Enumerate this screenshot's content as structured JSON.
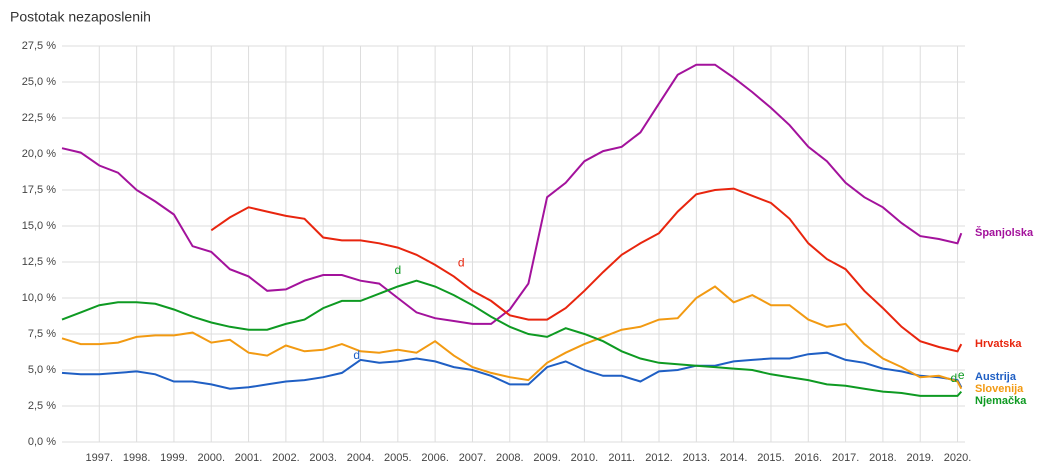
{
  "chart_data": {
    "type": "line",
    "title": "Postotak nezaposlenih",
    "x": [
      1996,
      1996.5,
      1997,
      1997.5,
      1998,
      1998.5,
      1999,
      1999.5,
      2000,
      2000.5,
      2001,
      2001.5,
      2002,
      2002.5,
      2003,
      2003.5,
      2004,
      2004.5,
      2005,
      2005.5,
      2006,
      2006.5,
      2007,
      2007.5,
      2008,
      2008.5,
      2009,
      2009.5,
      2010,
      2010.5,
      2011,
      2011.5,
      2012,
      2012.5,
      2013,
      2013.5,
      2014,
      2014.5,
      2015,
      2015.5,
      2016,
      2016.5,
      2017,
      2017.5,
      2018,
      2018.5,
      2019,
      2019.5,
      2020,
      2020.1
    ],
    "series": [
      {
        "name": "Španjolska",
        "color": "#a3129c",
        "values": [
          20.4,
          20.1,
          19.2,
          18.7,
          17.5,
          16.7,
          15.8,
          13.6,
          13.2,
          12.0,
          11.5,
          10.5,
          10.6,
          11.2,
          11.6,
          11.6,
          11.2,
          11.0,
          10.0,
          9.0,
          8.6,
          8.4,
          8.2,
          8.2,
          9.2,
          11.0,
          17.0,
          18.0,
          19.5,
          20.2,
          20.5,
          21.5,
          23.5,
          25.5,
          26.2,
          26.2,
          25.3,
          24.3,
          23.2,
          22.0,
          20.5,
          19.5,
          18.0,
          17.0,
          16.3,
          15.2,
          14.3,
          14.1,
          13.8,
          14.5
        ]
      },
      {
        "name": "Hrvatska",
        "color": "#e8250e",
        "values": [
          null,
          null,
          null,
          null,
          null,
          null,
          null,
          null,
          14.7,
          15.6,
          16.3,
          16.0,
          15.7,
          15.5,
          14.2,
          14.0,
          14.0,
          13.8,
          13.5,
          13.0,
          12.3,
          11.5,
          10.5,
          9.8,
          8.8,
          8.5,
          8.5,
          9.3,
          10.5,
          11.8,
          13.0,
          13.8,
          14.5,
          16.0,
          17.2,
          17.5,
          17.6,
          17.1,
          16.6,
          15.5,
          13.8,
          12.7,
          12.0,
          10.5,
          9.3,
          8.0,
          7.0,
          6.6,
          6.3,
          6.8
        ]
      },
      {
        "name": "Austrija",
        "color": "#1f5fc4",
        "values": [
          4.8,
          4.7,
          4.7,
          4.8,
          4.9,
          4.7,
          4.2,
          4.2,
          4.0,
          3.7,
          3.8,
          4.0,
          4.2,
          4.3,
          4.5,
          4.8,
          5.7,
          5.5,
          5.6,
          5.8,
          5.6,
          5.2,
          5.0,
          4.6,
          4.0,
          4.0,
          5.2,
          5.6,
          5.0,
          4.6,
          4.6,
          4.2,
          4.9,
          5.0,
          5.3,
          5.3,
          5.6,
          5.7,
          5.8,
          5.8,
          6.1,
          6.2,
          5.7,
          5.5,
          5.1,
          4.9,
          4.6,
          4.5,
          4.3,
          3.8
        ]
      },
      {
        "name": "Slovenija",
        "color": "#f29a12",
        "values": [
          7.2,
          6.8,
          6.8,
          6.9,
          7.3,
          7.4,
          7.4,
          7.6,
          6.9,
          7.1,
          6.2,
          6.0,
          6.7,
          6.3,
          6.4,
          6.8,
          6.3,
          6.2,
          6.4,
          6.2,
          7.0,
          6.0,
          5.2,
          4.8,
          4.5,
          4.3,
          5.5,
          6.2,
          6.8,
          7.3,
          7.8,
          8.0,
          8.5,
          8.6,
          10.0,
          10.8,
          9.7,
          10.2,
          9.5,
          9.5,
          8.5,
          8.0,
          8.2,
          6.8,
          5.8,
          5.2,
          4.5,
          4.6,
          4.2,
          3.7
        ]
      },
      {
        "name": "Njemačka",
        "color": "#0e9a22",
        "values": [
          8.5,
          9.0,
          9.5,
          9.7,
          9.7,
          9.6,
          9.2,
          8.7,
          8.3,
          8.0,
          7.8,
          7.8,
          8.2,
          8.5,
          9.3,
          9.8,
          9.8,
          10.3,
          10.8,
          11.2,
          10.8,
          10.2,
          9.5,
          8.7,
          8.0,
          7.5,
          7.3,
          7.9,
          7.5,
          7.0,
          6.3,
          5.8,
          5.5,
          5.4,
          5.3,
          5.2,
          5.1,
          5.0,
          4.7,
          4.5,
          4.3,
          4.0,
          3.9,
          3.7,
          3.5,
          3.4,
          3.2,
          3.2,
          3.2,
          3.5
        ]
      }
    ],
    "annotations": [
      {
        "text": "d",
        "x": 2005.0,
        "y": 11.9,
        "color": "#0e9a22"
      },
      {
        "text": "d",
        "x": 2006.7,
        "y": 12.4,
        "color": "#e8250e"
      },
      {
        "text": "d",
        "x": 2003.9,
        "y": 6.0,
        "color": "#1f5fc4"
      },
      {
        "text": "d",
        "x": 2019.9,
        "y": 4.4,
        "color": "#0e9a22"
      },
      {
        "text": "e",
        "x": 2020.1,
        "y": 4.6,
        "color": "#0e9a22"
      }
    ],
    "xlim": [
      1996,
      2020.2
    ],
    "xticks": [
      {
        "value": 1997,
        "label": "1997."
      },
      {
        "value": 1998,
        "label": "1998."
      },
      {
        "value": 1999,
        "label": "1999."
      },
      {
        "value": 2000,
        "label": "2000."
      },
      {
        "value": 2001,
        "label": "2001."
      },
      {
        "value": 2002,
        "label": "2002."
      },
      {
        "value": 2003,
        "label": "2003."
      },
      {
        "value": 2004,
        "label": "2004."
      },
      {
        "value": 2005,
        "label": "2005."
      },
      {
        "value": 2006,
        "label": "2006."
      },
      {
        "value": 2007,
        "label": "2007."
      },
      {
        "value": 2008,
        "label": "2008."
      },
      {
        "value": 2009,
        "label": "2009."
      },
      {
        "value": 2010,
        "label": "2010."
      },
      {
        "value": 2011,
        "label": "2011."
      },
      {
        "value": 2012,
        "label": "2012."
      },
      {
        "value": 2013,
        "label": "2013."
      },
      {
        "value": 2014,
        "label": "2014."
      },
      {
        "value": 2015,
        "label": "2015."
      },
      {
        "value": 2016,
        "label": "2016."
      },
      {
        "value": 2017,
        "label": "2017."
      },
      {
        "value": 2018,
        "label": "2018."
      },
      {
        "value": 2019,
        "label": "2019."
      },
      {
        "value": 2020,
        "label": "2020."
      }
    ],
    "ylim": [
      0,
      27.5
    ],
    "yticks": [
      {
        "value": 0,
        "label": "0,0 %"
      },
      {
        "value": 2.5,
        "label": "2,5 %"
      },
      {
        "value": 5,
        "label": "5,0 %"
      },
      {
        "value": 7.5,
        "label": "7,5 %"
      },
      {
        "value": 10,
        "label": "10,0 %"
      },
      {
        "value": 12.5,
        "label": "12,5 %"
      },
      {
        "value": 15,
        "label": "15,0 %"
      },
      {
        "value": 17.5,
        "label": "17,5 %"
      },
      {
        "value": 20,
        "label": "20,0 %"
      },
      {
        "value": 22.5,
        "label": "22,5 %"
      },
      {
        "value": 25,
        "label": "25,0 %"
      },
      {
        "value": 27.5,
        "label": "27,5 %"
      }
    ],
    "grid": true
  }
}
